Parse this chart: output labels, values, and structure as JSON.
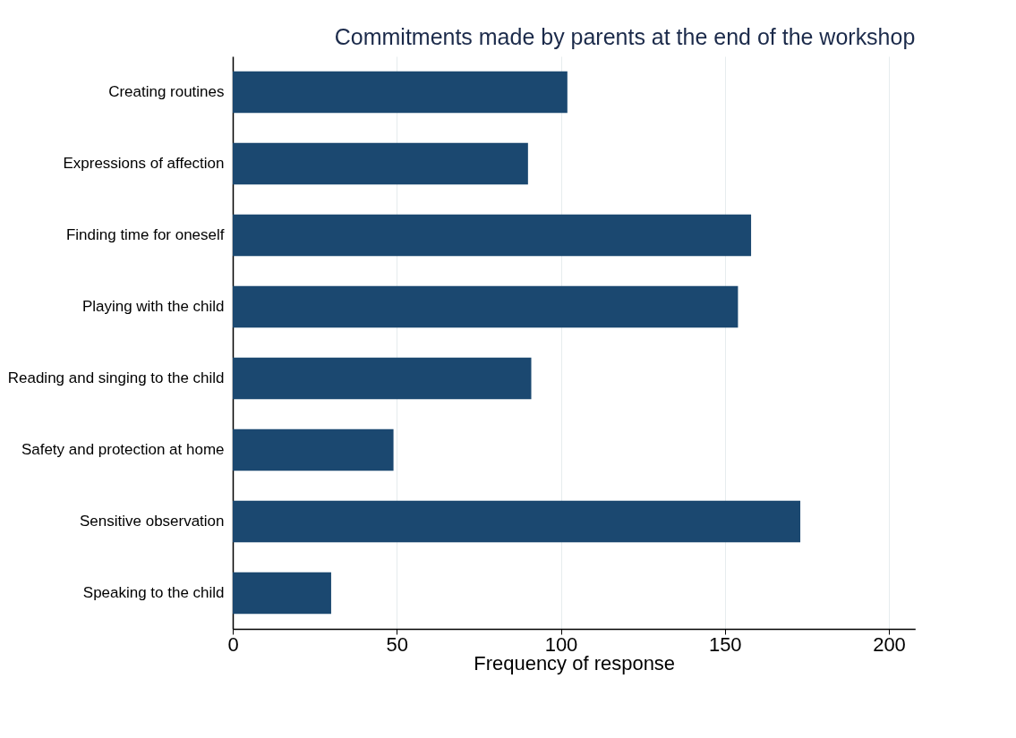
{
  "chart_data": {
    "type": "bar",
    "orientation": "horizontal",
    "title": "Commitments made by parents at the end of the workshop",
    "xlabel": "Frequency of response",
    "categories": [
      "Creating routines",
      "Expressions of affection",
      "Finding time for oneself",
      "Playing with the child",
      "Reading and singing to the child",
      "Safety and protection at home",
      "Sensitive observation",
      "Speaking to the child"
    ],
    "values": [
      102,
      90,
      158,
      154,
      91,
      49,
      173,
      30
    ],
    "color": "#1b4870",
    "xlim": [
      0,
      208
    ],
    "xticks": [
      0,
      50,
      100,
      150,
      200
    ],
    "grid": "x"
  }
}
